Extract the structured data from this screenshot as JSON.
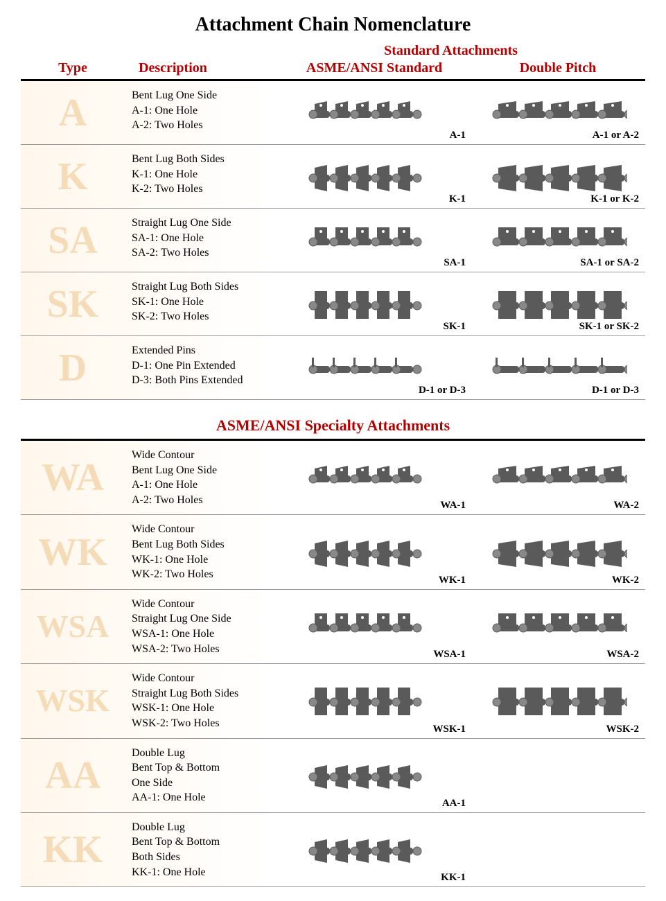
{
  "title": "Attachment Chain Nomenclature",
  "headers": {
    "super": "Standard Attachments",
    "type": "Type",
    "description": "Description",
    "std": "ASME/ANSI Standard",
    "dbl": "Double Pitch"
  },
  "section1_rows": [
    {
      "type": "A",
      "desc": "Bent Lug One Side\nA-1: One Hole\nA-2: Two Holes",
      "std_label": "A-1",
      "dbl_label": "A-1 or A-2"
    },
    {
      "type": "K",
      "desc": "Bent Lug Both Sides\nK-1: One Hole\nK-2: Two Holes",
      "std_label": "K-1",
      "dbl_label": "K-1 or K-2"
    },
    {
      "type": "SA",
      "desc": "Straight Lug One Side\nSA-1: One Hole\nSA-2: Two Holes",
      "std_label": "SA-1",
      "dbl_label": "SA-1 or SA-2"
    },
    {
      "type": "SK",
      "desc": "Straight Lug Both Sides\nSK-1: One Hole\nSK-2: Two Holes",
      "std_label": "SK-1",
      "dbl_label": "SK-1 or SK-2"
    },
    {
      "type": "D",
      "desc": "Extended Pins\nD-1: One Pin Extended\nD-3: Both Pins Extended",
      "std_label": "D-1 or D-3",
      "dbl_label": "D-1 or D-3"
    }
  ],
  "section2_title": "ASME/ANSI Specialty Attachments",
  "section2_rows": [
    {
      "type": "WA",
      "desc": "Wide Contour\nBent Lug One Side\nA-1: One Hole\nA-2: Two Holes",
      "std_label": "WA-1",
      "dbl_label": "WA-2"
    },
    {
      "type": "WK",
      "desc": "Wide Contour\nBent Lug Both Sides\nWK-1: One Hole\nWK-2: Two Holes",
      "std_label": "WK-1",
      "dbl_label": "WK-2"
    },
    {
      "type": "WSA",
      "desc": "Wide Contour\nStraight Lug One Side\nWSA-1: One Hole\nWSA-2: Two Holes",
      "std_label": "WSA-1",
      "dbl_label": "WSA-2"
    },
    {
      "type": "WSK",
      "desc": "Wide Contour\nStraight Lug Both Sides\nWSK-1: One Hole\nWSK-2: Two Holes",
      "std_label": "WSK-1",
      "dbl_label": "WSK-2"
    },
    {
      "type": "AA",
      "desc": "Double Lug\nBent Top & Bottom\nOne Side\nAA-1: One Hole",
      "std_label": "AA-1",
      "dbl_label": ""
    },
    {
      "type": "KK",
      "desc": "Double Lug\nBent Top & Bottom\nBoth Sides\nKK-1: One Hole",
      "std_label": "KK-1",
      "dbl_label": ""
    }
  ],
  "styling": {
    "title_fontsize": 28,
    "header_color": "#b40000",
    "type_letter_color": "#f5dcb8",
    "type_letter_fontsize": 56,
    "row_stripe_bg": "#fff7ec",
    "chain_color": "#5a5a5a",
    "chain_highlight": "#888888",
    "border_color": "#000000",
    "divider_color": "#999999",
    "body_fontsize": 16,
    "label_fontsize": 15
  }
}
